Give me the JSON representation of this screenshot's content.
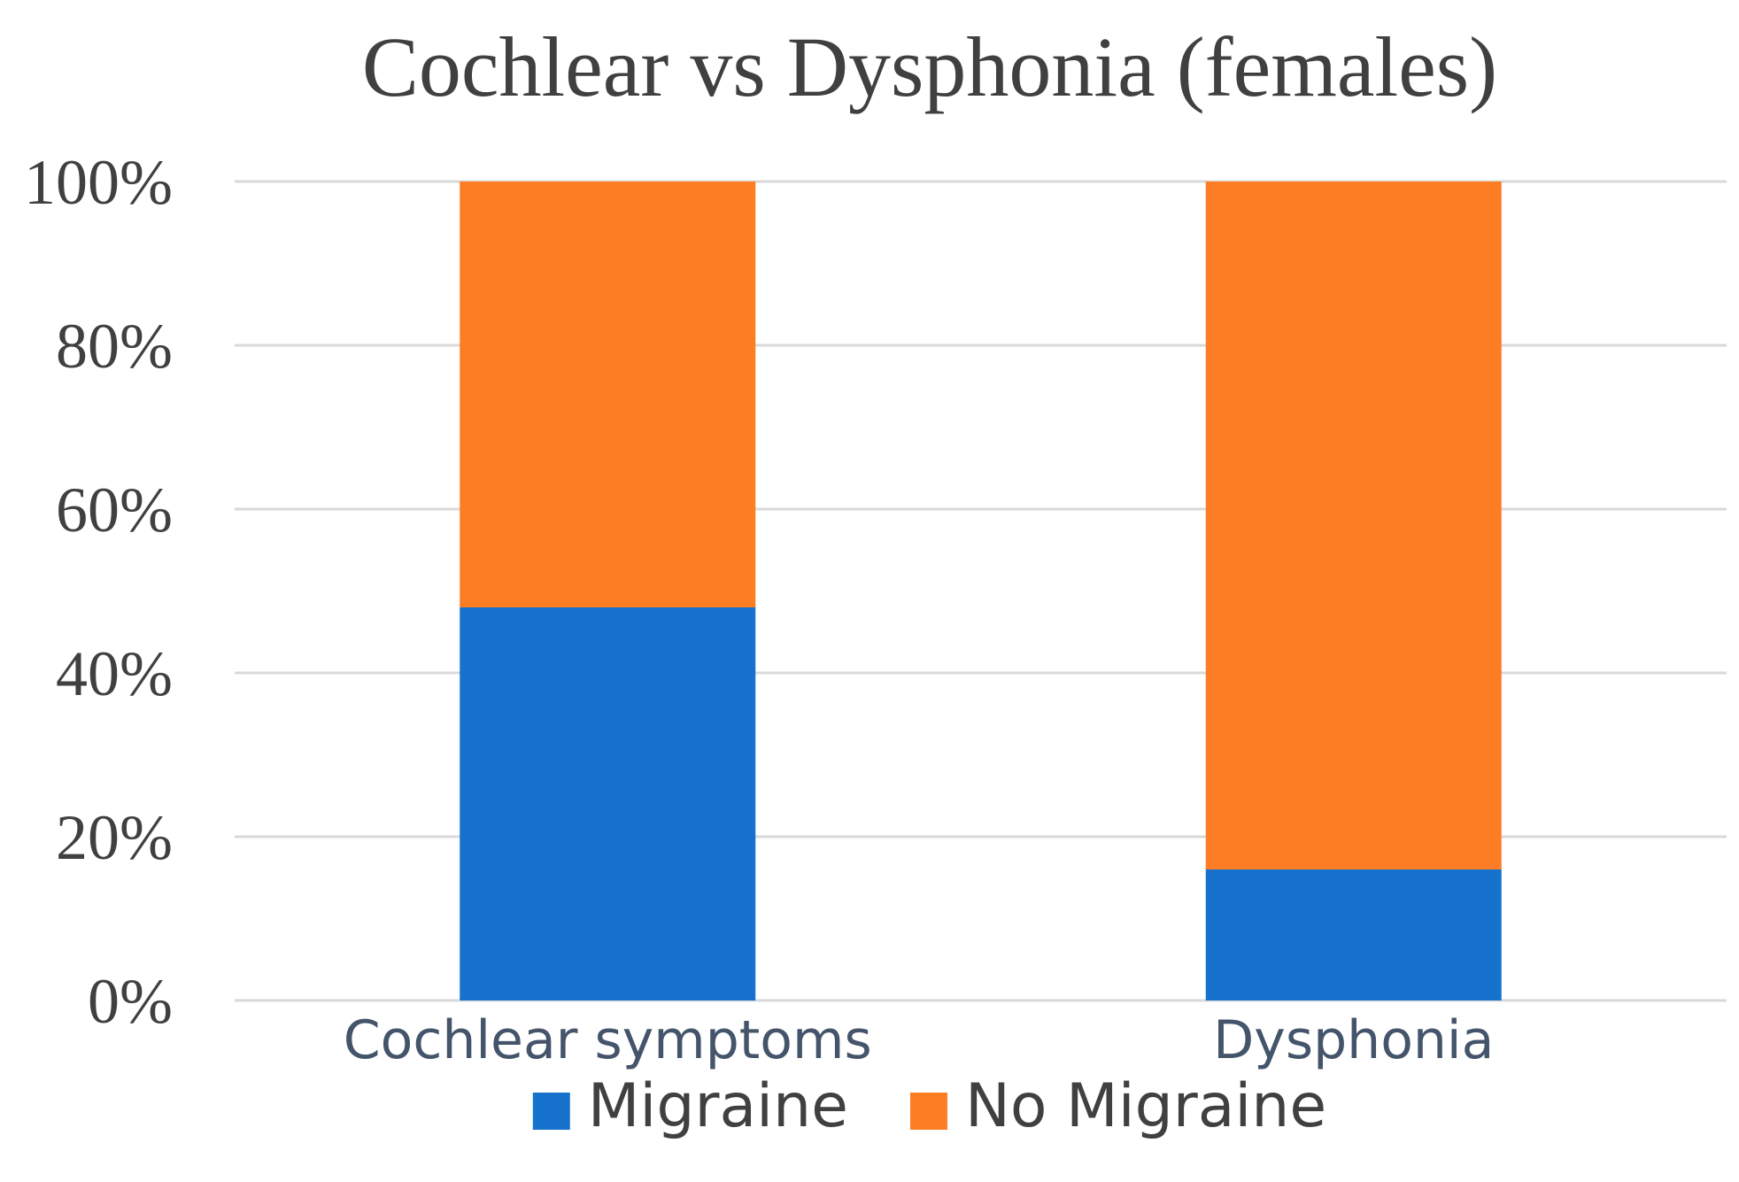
{
  "chart_data": {
    "type": "bar",
    "stacked": true,
    "percent_stacked": true,
    "title": "Cochlear vs Dysphonia (females)",
    "xlabel": "",
    "ylabel": "",
    "categories": [
      "Cochlear symptoms",
      "Dysphonia"
    ],
    "series": [
      {
        "name": "Migraine",
        "values": [
          48,
          16
        ],
        "color": "#1672cc"
      },
      {
        "name": "No Migraine",
        "values": [
          52,
          84
        ],
        "color": "#fd7d24"
      }
    ],
    "ylim": [
      0,
      100
    ],
    "y_ticks": [
      0,
      20,
      40,
      60,
      80,
      100
    ],
    "y_tick_labels": [
      "0%",
      "20%",
      "40%",
      "60%",
      "80%",
      "100%"
    ],
    "grid": true,
    "legend": "bottom"
  }
}
